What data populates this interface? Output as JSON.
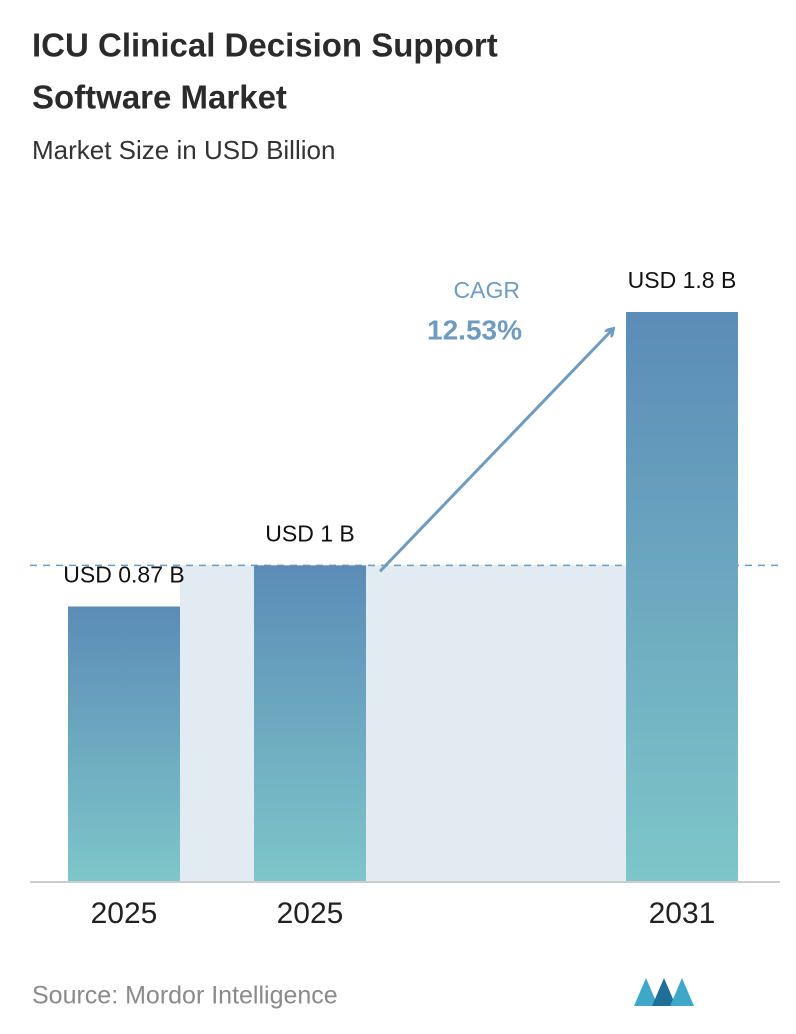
{
  "chart_data": {
    "type": "bar",
    "title": "ICU Clinical Decision Support Software Market",
    "title_lines": [
      "ICU Clinical Decision Support",
      "Software Market"
    ],
    "subtitle": "Market Size in USD Billion",
    "categories": [
      "2025",
      "2025",
      "2031"
    ],
    "values": [
      0.87,
      1,
      1.8
    ],
    "value_labels": [
      "USD 0.87 B",
      "USD 1 B",
      "USD 1.8 B"
    ],
    "colors": [
      "#5b8cb7",
      "#7ec6c9"
    ],
    "cagr_label": "CAGR",
    "cagr_value": "12.53%",
    "source": "Source: Mordor Intelligence"
  }
}
